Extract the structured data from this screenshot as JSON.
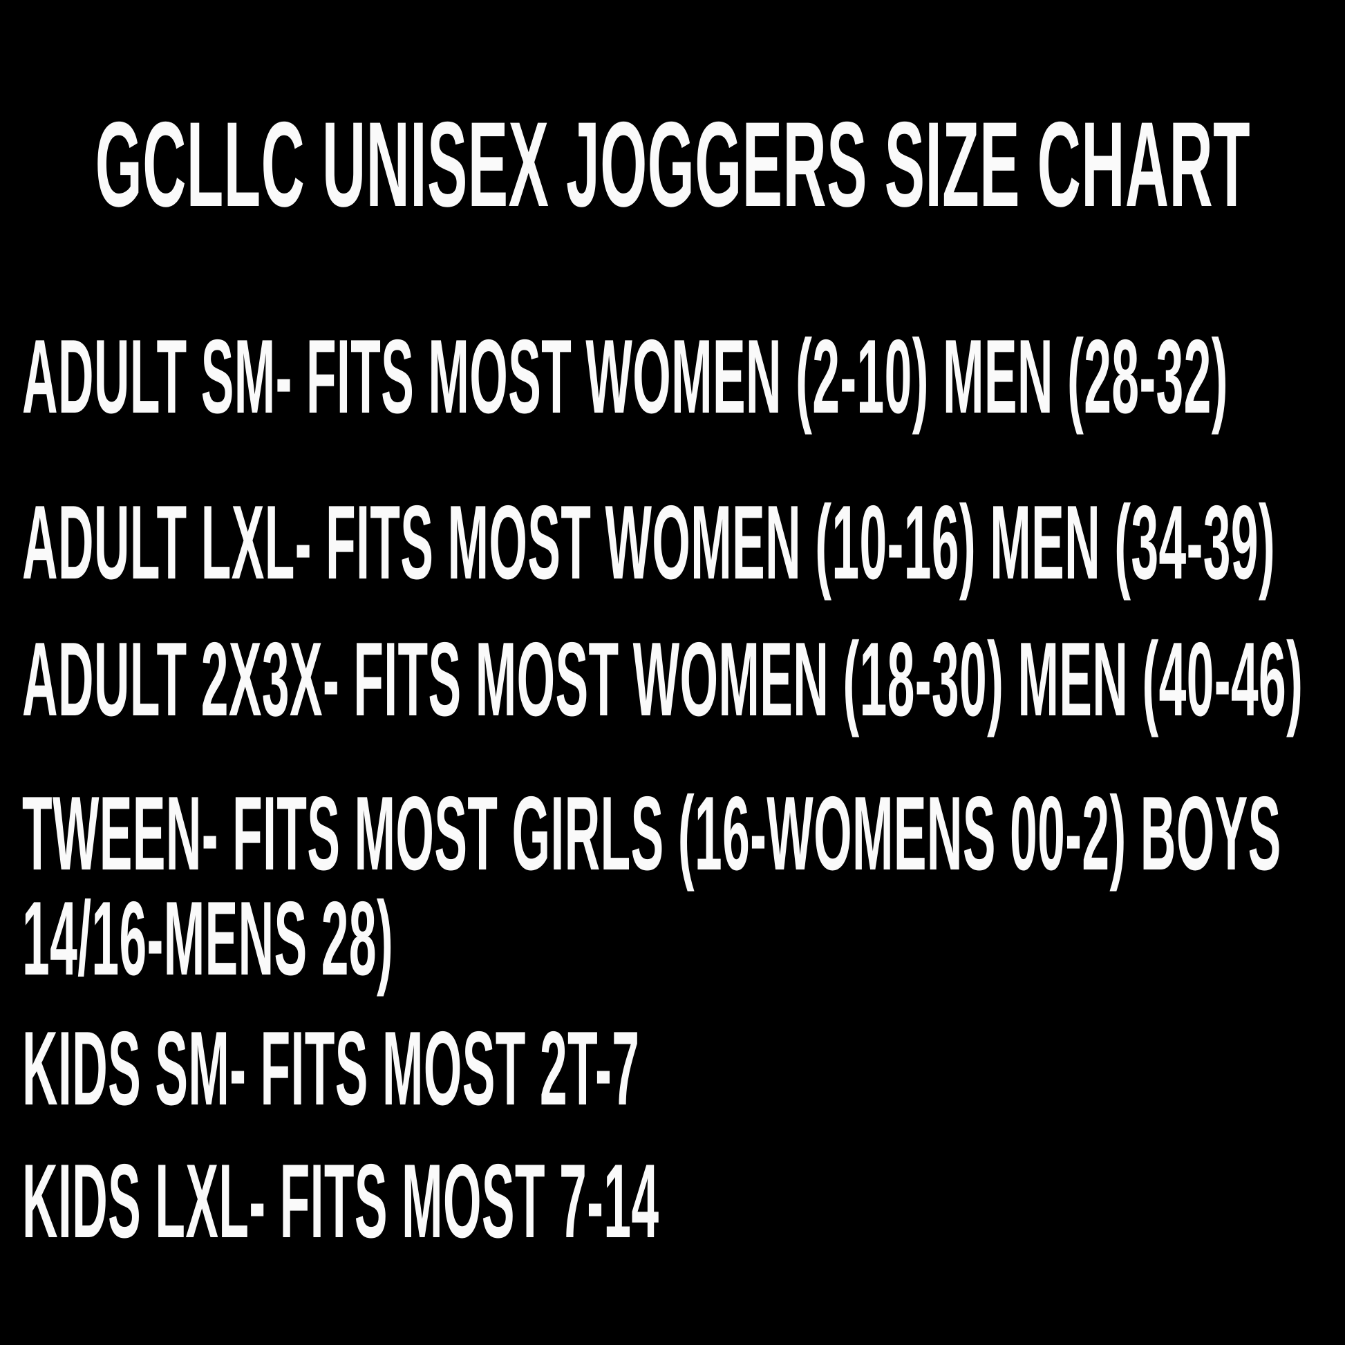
{
  "theme": {
    "background": "#000000",
    "text_color": "#fafafa"
  },
  "title": "GCLLC UNISEX JOGGERS SIZE CHART",
  "size_chart": {
    "rows": [
      {
        "id": "adult-sm",
        "lines": [
          "ADULT SM- FITS MOST WOMEN (2-10) MEN (28-32)"
        ]
      },
      {
        "id": "adult-lxl",
        "lines": [
          "ADULT LXL- FITS MOST WOMEN (10-16) MEN (34-39)"
        ]
      },
      {
        "id": "adult-2x3x",
        "lines": [
          "ADULT 2X3X- FITS MOST WOMEN (18-30) MEN (40-46)"
        ]
      },
      {
        "id": "tween",
        "lines": [
          "TWEEN- FITS MOST GIRLS (16-WOMENS 00-2) BOYS",
          "14/16-MENS 28)"
        ]
      },
      {
        "id": "kids-sm",
        "lines": [
          "KIDS SM- FITS MOST 2T-7"
        ]
      },
      {
        "id": "kids-lxl",
        "lines": [
          "KIDS LXL- FITS MOST 7-14"
        ]
      }
    ]
  }
}
